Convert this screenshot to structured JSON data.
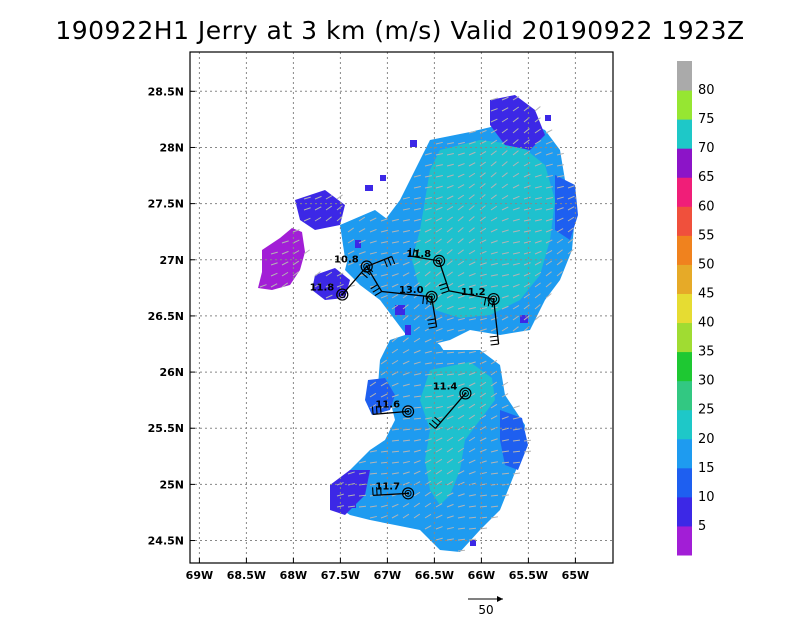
{
  "title": "190922H1 Jerry at 3 km (m/s) Valid 20190922 1923Z",
  "map": {
    "lon_ticks": [
      "69W",
      "68.5W",
      "68W",
      "67.5W",
      "67W",
      "66.5W",
      "66W",
      "65.5W",
      "65W"
    ],
    "lat_ticks": [
      "28.5N",
      "28N",
      "27.5N",
      "27N",
      "26.5N",
      "26N",
      "25.5N",
      "25N",
      "24.5N"
    ],
    "lon_values": [
      -69,
      -68.5,
      -68,
      -67.5,
      -67,
      -66.5,
      -66,
      -65.5,
      -65
    ],
    "lat_values": [
      28.5,
      28,
      27.5,
      27,
      26.5,
      26,
      25.5,
      25,
      24.5
    ],
    "lon_range": [
      -69.1,
      -64.6
    ],
    "lat_range": [
      24.3,
      28.85
    ],
    "grid": true,
    "grid_style": "dotted",
    "frame_color": "#000000",
    "background": "#ffffff"
  },
  "colorbar": {
    "labels": [
      "5",
      "10",
      "15",
      "20",
      "25",
      "30",
      "35",
      "40",
      "45",
      "50",
      "55",
      "60",
      "65",
      "70",
      "75",
      "80"
    ],
    "colors": [
      "#a21ed6",
      "#3c28e6",
      "#1e5ff0",
      "#1e9bf0",
      "#1ec8c8",
      "#32c882",
      "#1ec832",
      "#a0dc32",
      "#e6dc32",
      "#e6aa28",
      "#f0821e",
      "#f0503c",
      "#f01e78",
      "#8c14c8",
      "#1ec8c8",
      "#96e632",
      "#aaaaaa"
    ]
  },
  "reference_vector": {
    "label": "50"
  },
  "centers": [
    {
      "label": "10.8",
      "lon": -67.22,
      "lat": 26.94
    },
    {
      "label": "11.8",
      "lon": -66.45,
      "lat": 26.99
    },
    {
      "label": "11.8",
      "lon": -67.48,
      "lat": 26.69
    },
    {
      "label": "13.0",
      "lon": -66.53,
      "lat": 26.67
    },
    {
      "label": "11.2",
      "lon": -65.87,
      "lat": 26.65
    },
    {
      "label": "11.4",
      "lon": -66.17,
      "lat": 25.81
    },
    {
      "label": "11.6",
      "lon": -66.78,
      "lat": 25.65
    },
    {
      "label": "11.7",
      "lon": -66.78,
      "lat": 24.92
    }
  ]
}
